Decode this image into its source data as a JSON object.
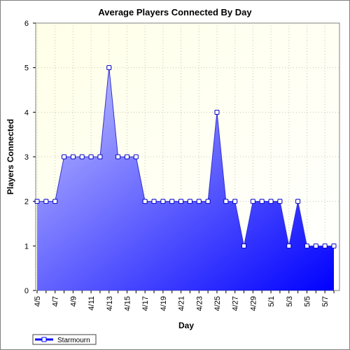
{
  "chart_data": {
    "type": "area",
    "title": "Average Players Connected By Day",
    "xlabel": "Day",
    "ylabel": "Players Connected",
    "ylim": [
      0,
      6
    ],
    "yticks": [
      "0",
      "1",
      "2",
      "3",
      "4",
      "5",
      "6"
    ],
    "grid": true,
    "legend_position": "bottom-left",
    "x": [
      "4/5",
      "4/6",
      "4/7",
      "4/8",
      "4/9",
      "4/10",
      "4/11",
      "4/12",
      "4/13",
      "4/14",
      "4/15",
      "4/16",
      "4/17",
      "4/18",
      "4/19",
      "4/20",
      "4/21",
      "4/22",
      "4/23",
      "4/24",
      "4/25",
      "4/26",
      "4/27",
      "4/28",
      "4/29",
      "4/30",
      "5/1",
      "5/2",
      "5/3",
      "5/4",
      "5/5",
      "5/6",
      "5/7",
      "5/8"
    ],
    "xtick_labels": [
      "4/5",
      "4/7",
      "4/9",
      "4/11",
      "4/13",
      "4/15",
      "4/17",
      "4/19",
      "4/21",
      "4/23",
      "4/25",
      "4/27",
      "4/29",
      "5/1",
      "5/3",
      "5/5",
      "5/7"
    ],
    "series": [
      {
        "name": "Starmourn",
        "color": "#0000ff",
        "values": [
          2,
          2,
          2,
          3,
          3,
          3,
          3,
          3,
          5,
          3,
          3,
          3,
          2,
          2,
          2,
          2,
          2,
          2,
          2,
          2,
          4,
          2,
          2,
          1,
          2,
          2,
          2,
          2,
          1,
          2,
          1,
          1,
          1,
          1
        ]
      }
    ],
    "colors": {
      "plot_bg_top": "#fdfde0",
      "plot_bg_bottom": "#ffffff",
      "fill_light": "#c8c8ff",
      "fill_dark": "#0000ff",
      "line": "#3232d2"
    }
  }
}
